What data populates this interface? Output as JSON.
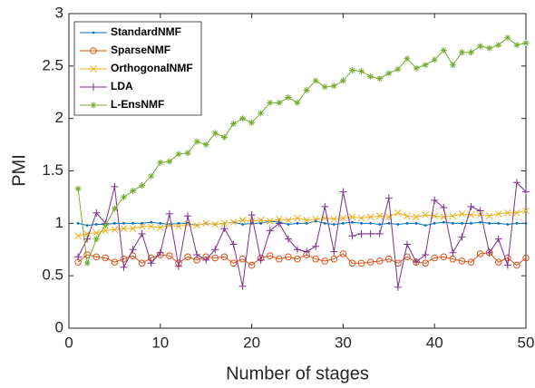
{
  "chart_data": {
    "type": "line",
    "x_label": "Number of stages",
    "y_label": "PMI",
    "x": [
      1,
      2,
      3,
      4,
      5,
      6,
      7,
      8,
      9,
      10,
      11,
      12,
      13,
      14,
      15,
      16,
      17,
      18,
      19,
      20,
      21,
      22,
      23,
      24,
      25,
      26,
      27,
      28,
      29,
      30,
      31,
      32,
      33,
      34,
      35,
      36,
      37,
      38,
      39,
      40,
      41,
      42,
      43,
      44,
      45,
      46,
      47,
      48,
      49,
      50
    ],
    "series": [
      {
        "name": "StandardNMF",
        "color": "#0072bd",
        "marker": "dot",
        "values": [
          1.0,
          0.98,
          0.99,
          0.99,
          1.0,
          1.0,
          1.0,
          1.0,
          1.01,
          1.0,
          0.99,
          1.0,
          1.0,
          0.98,
          1.0,
          0.99,
          1.0,
          1.01,
          0.99,
          1.0,
          1.0,
          1.02,
          1.01,
          0.99,
          1.0,
          1.0,
          1.02,
          1.0,
          0.99,
          1.0,
          1.01,
          1.0,
          1.0,
          0.99,
          1.0,
          0.99,
          1.0,
          1.0,
          0.98,
          1.0,
          1.01,
          1.0,
          1.0,
          1.0,
          1.01,
          1.0,
          1.0,
          0.99,
          1.0,
          1.0
        ]
      },
      {
        "name": "SparseNMF",
        "color": "#d95319",
        "marker": "circle",
        "values": [
          0.63,
          0.7,
          0.68,
          0.67,
          0.63,
          0.66,
          0.69,
          0.62,
          0.67,
          0.7,
          0.69,
          0.62,
          0.68,
          0.65,
          0.68,
          0.67,
          0.68,
          0.62,
          0.66,
          0.6,
          0.67,
          0.69,
          0.66,
          0.68,
          0.66,
          0.7,
          0.66,
          0.64,
          0.66,
          0.71,
          0.62,
          0.62,
          0.63,
          0.64,
          0.66,
          0.62,
          0.68,
          0.63,
          0.62,
          0.67,
          0.68,
          0.66,
          0.64,
          0.63,
          0.71,
          0.72,
          0.63,
          0.67,
          0.6,
          0.67
        ]
      },
      {
        "name": "OrthogonalNMF",
        "color": "#edb120",
        "marker": "x",
        "values": [
          0.88,
          0.9,
          0.91,
          0.93,
          0.94,
          0.95,
          0.95,
          0.97,
          0.97,
          0.96,
          0.98,
          0.97,
          0.99,
          0.98,
          1.0,
          0.99,
          1.0,
          1.01,
          1.03,
          1.02,
          1.03,
          1.02,
          1.04,
          1.03,
          1.05,
          1.03,
          1.04,
          1.05,
          1.04,
          1.05,
          1.06,
          1.05,
          1.06,
          1.07,
          1.06,
          1.1,
          1.07,
          1.06,
          1.08,
          1.07,
          1.06,
          1.07,
          1.09,
          1.08,
          1.08,
          1.07,
          1.09,
          1.1,
          1.1,
          1.12
        ]
      },
      {
        "name": "LDA",
        "color": "#7e2f8e",
        "marker": "plus",
        "values": [
          0.68,
          0.85,
          1.1,
          1.0,
          1.35,
          0.58,
          0.75,
          0.9,
          0.62,
          0.72,
          1.09,
          0.59,
          1.07,
          0.7,
          0.65,
          0.75,
          0.95,
          0.8,
          0.4,
          1.08,
          0.65,
          0.93,
          1.0,
          0.85,
          0.75,
          0.73,
          0.78,
          1.16,
          0.73,
          1.3,
          0.88,
          0.9,
          0.9,
          0.9,
          1.24,
          0.39,
          0.8,
          0.63,
          0.7,
          1.22,
          1.15,
          0.72,
          0.87,
          1.16,
          1.12,
          0.72,
          0.85,
          0.6,
          1.39,
          1.3
        ]
      },
      {
        "name": "L-EnsNMF",
        "color": "#77ac30",
        "marker": "asterisk",
        "values": [
          1.33,
          0.62,
          0.85,
          0.98,
          1.14,
          1.25,
          1.31,
          1.36,
          1.45,
          1.58,
          1.59,
          1.66,
          1.67,
          1.78,
          1.75,
          1.86,
          1.82,
          1.95,
          2.0,
          1.96,
          2.05,
          2.15,
          2.15,
          2.2,
          2.15,
          2.27,
          2.36,
          2.3,
          2.31,
          2.36,
          2.46,
          2.45,
          2.4,
          2.38,
          2.43,
          2.47,
          2.57,
          2.48,
          2.51,
          2.56,
          2.65,
          2.51,
          2.63,
          2.63,
          2.69,
          2.67,
          2.7,
          2.77,
          2.7,
          2.72
        ]
      }
    ],
    "xlim": [
      0,
      50
    ],
    "xticks": [
      0,
      10,
      20,
      30,
      40,
      50
    ],
    "ylim": [
      0,
      3
    ],
    "yticks": [
      0,
      0.5,
      1,
      1.5,
      2,
      2.5,
      3
    ],
    "grid": false,
    "legend": "top-left"
  }
}
